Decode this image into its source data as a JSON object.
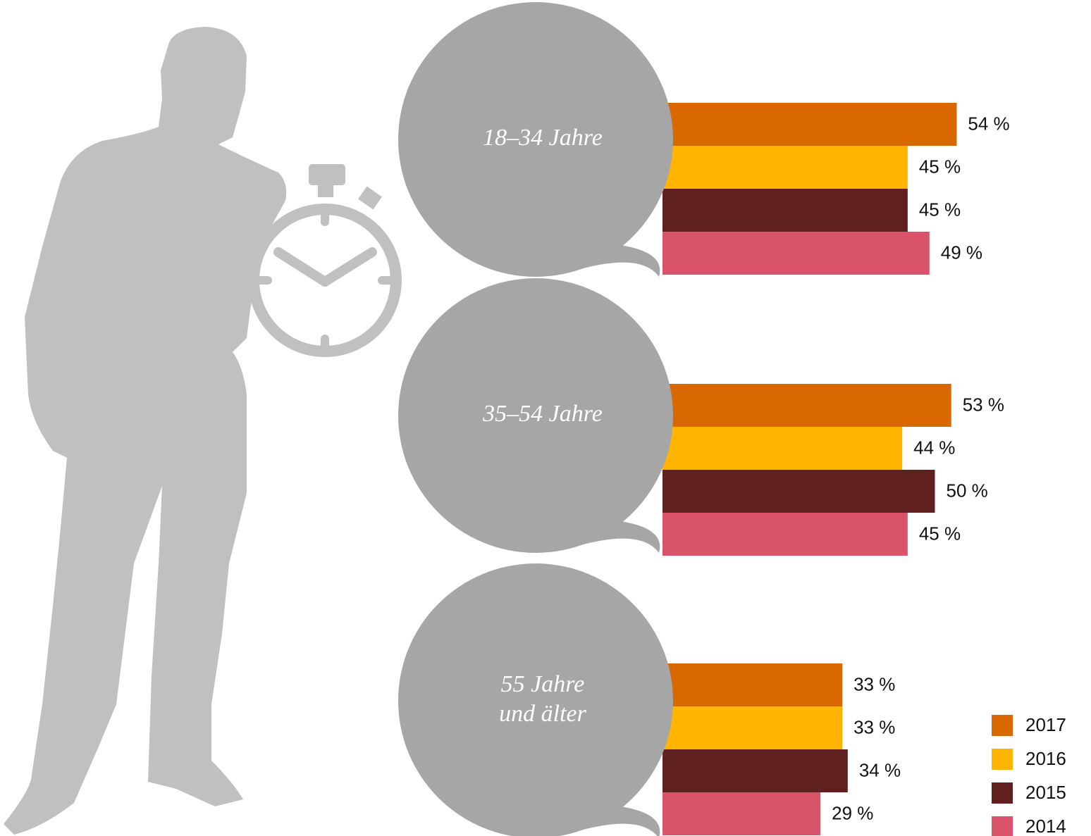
{
  "chart_data": {
    "type": "bar",
    "categories": [
      [
        "18–34 Jahre"
      ],
      [
        "35–54 Jahre"
      ],
      [
        "55 Jahre",
        "und älter"
      ]
    ],
    "series": [
      {
        "name": "2017",
        "color": "#d96800",
        "values": [
          54,
          53,
          33
        ],
        "value_labels": [
          "54 %",
          "53 %",
          "33 %"
        ]
      },
      {
        "name": "2016",
        "color": "#ffb500",
        "values": [
          45,
          44,
          33
        ],
        "value_labels": [
          "45 %",
          "44 %",
          "33 %"
        ]
      },
      {
        "name": "2015",
        "color": "#602020",
        "values": [
          45,
          50,
          34
        ],
        "value_labels": [
          "45 %",
          "50 %",
          "34 %"
        ]
      },
      {
        "name": "2014",
        "color": "#d9546a",
        "values": [
          49,
          45,
          29
        ],
        "value_labels": [
          "49 %",
          "45 %",
          "29 %"
        ]
      }
    ]
  }
}
